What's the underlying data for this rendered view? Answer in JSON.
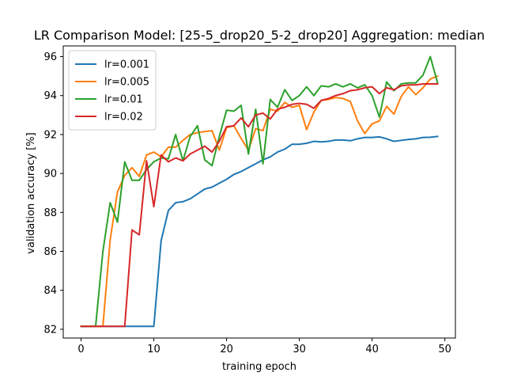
{
  "chart_data": {
    "type": "line",
    "title": "LR Comparison  Model: [25-5_drop20_5-2_drop20]  Aggregation: median",
    "xlabel": "training epoch",
    "ylabel": "validation accuracy [%]",
    "xlim": [
      -2.45,
      51.45
    ],
    "ylim": [
      81.55,
      96.55
    ],
    "xticks": [
      0,
      10,
      20,
      30,
      40,
      50
    ],
    "yticks": [
      82,
      84,
      86,
      88,
      90,
      92,
      94,
      96
    ],
    "grid": false,
    "legend_position": "top-left",
    "x": [
      0,
      1,
      2,
      3,
      4,
      5,
      6,
      7,
      8,
      9,
      10,
      11,
      12,
      13,
      14,
      15,
      16,
      17,
      18,
      19,
      20,
      21,
      22,
      23,
      24,
      25,
      26,
      27,
      28,
      29,
      30,
      31,
      32,
      33,
      34,
      35,
      36,
      37,
      38,
      39,
      40,
      41,
      42,
      43,
      44,
      45,
      46,
      47,
      48,
      49
    ],
    "series": [
      {
        "name": "lr=0.001",
        "color": "#1f77b4",
        "values": [
          82.15,
          82.15,
          82.15,
          82.15,
          82.15,
          82.15,
          82.15,
          82.15,
          82.15,
          82.15,
          82.15,
          86.55,
          88.1,
          88.5,
          88.55,
          88.7,
          88.95,
          89.2,
          89.3,
          89.5,
          89.7,
          89.95,
          90.1,
          90.3,
          90.5,
          90.7,
          90.85,
          91.1,
          91.25,
          91.5,
          91.5,
          91.55,
          91.65,
          91.62,
          91.65,
          91.72,
          91.72,
          91.68,
          91.78,
          91.85,
          91.85,
          91.88,
          91.78,
          91.65,
          91.7,
          91.75,
          91.78,
          91.85,
          91.86,
          91.9
        ]
      },
      {
        "name": "lr=0.005",
        "color": "#ff7f0e",
        "values": [
          82.15,
          82.15,
          82.15,
          82.15,
          86.6,
          89.05,
          89.9,
          90.3,
          89.85,
          90.95,
          91.1,
          90.85,
          91.35,
          91.35,
          91.7,
          92.0,
          92.1,
          92.15,
          92.2,
          91.2,
          92.35,
          92.45,
          91.8,
          91.2,
          92.3,
          92.2,
          93.3,
          93.2,
          93.65,
          93.4,
          93.5,
          92.25,
          93.15,
          93.75,
          93.8,
          93.9,
          93.85,
          93.7,
          92.7,
          92.05,
          92.55,
          92.7,
          93.45,
          93.05,
          93.95,
          94.45,
          94.05,
          94.4,
          94.85,
          95.0
        ]
      },
      {
        "name": "lr=0.01",
        "color": "#2ca02c",
        "values": [
          82.15,
          82.15,
          82.15,
          86.0,
          88.5,
          87.5,
          90.6,
          89.65,
          89.65,
          90.2,
          90.6,
          90.8,
          90.75,
          92.0,
          90.65,
          91.9,
          92.45,
          90.7,
          90.4,
          91.9,
          93.25,
          93.2,
          93.5,
          91.0,
          93.3,
          90.5,
          93.8,
          93.4,
          94.3,
          93.75,
          94.0,
          94.45,
          94.0,
          94.5,
          94.45,
          94.6,
          94.45,
          94.6,
          94.4,
          94.55,
          94.0,
          92.9,
          94.7,
          94.25,
          94.6,
          94.65,
          94.65,
          95.05,
          96.0,
          94.65
        ]
      },
      {
        "name": "lr=0.02",
        "color": "#d62728",
        "values": [
          82.15,
          82.15,
          82.15,
          82.15,
          82.15,
          82.15,
          82.15,
          87.1,
          86.85,
          90.65,
          88.3,
          90.95,
          90.6,
          90.8,
          90.65,
          91.0,
          91.2,
          91.4,
          91.1,
          91.65,
          92.4,
          92.45,
          92.85,
          92.4,
          93.0,
          93.1,
          92.8,
          93.3,
          93.4,
          93.55,
          93.6,
          93.55,
          93.35,
          93.75,
          93.85,
          94.0,
          94.1,
          94.25,
          94.3,
          94.4,
          94.45,
          94.1,
          94.4,
          94.3,
          94.5,
          94.55,
          94.55,
          94.6,
          94.6,
          94.6
        ]
      }
    ]
  }
}
